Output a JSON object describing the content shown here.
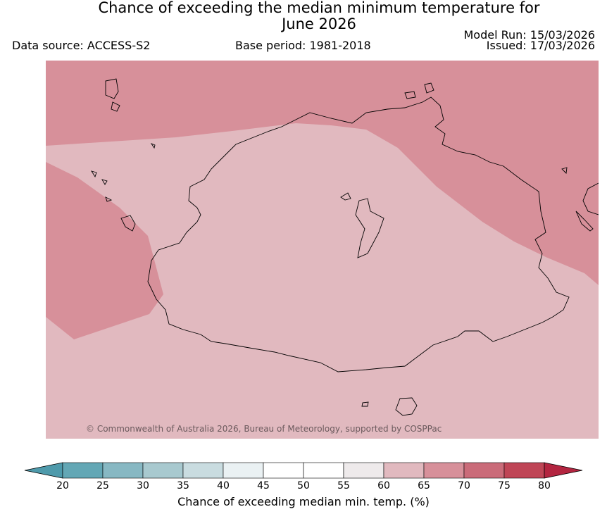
{
  "header": {
    "title_line1": "Chance of exceeding the median minimum temperature for",
    "title_line2": "June 2026",
    "data_source": "Data source: ACCESS-S2",
    "base_period": "Base period: 1981-2018",
    "model_run": "Model Run: 15/03/2026",
    "issued": "Issued: 17/03/2026"
  },
  "map": {
    "copyright": "© Commonwealth of Australia 2026, Bureau of Meteorology, supported by COSPPac",
    "regions": [
      {
        "category": "65-70",
        "color": "#d7909a"
      },
      {
        "category": "60-65",
        "color": "#e1b9bf"
      }
    ],
    "coastline_color": "#000000"
  },
  "colorbar": {
    "label": "Chance of exceeding median min. temp. (%)",
    "ticks": [
      "20",
      "25",
      "30",
      "35",
      "40",
      "45",
      "50",
      "55",
      "60",
      "65",
      "70",
      "75",
      "80"
    ],
    "colors": [
      "#63a7b5",
      "#87b8c3",
      "#a8c9cf",
      "#c9dce0",
      "#eaf1f3",
      "#ffffff",
      "#ffffff",
      "#eeeaeb",
      "#e1b9bf",
      "#d7909a",
      "#ca6b79",
      "#bf4556"
    ],
    "under_color": "#4e9aab",
    "over_color": "#b32540"
  }
}
